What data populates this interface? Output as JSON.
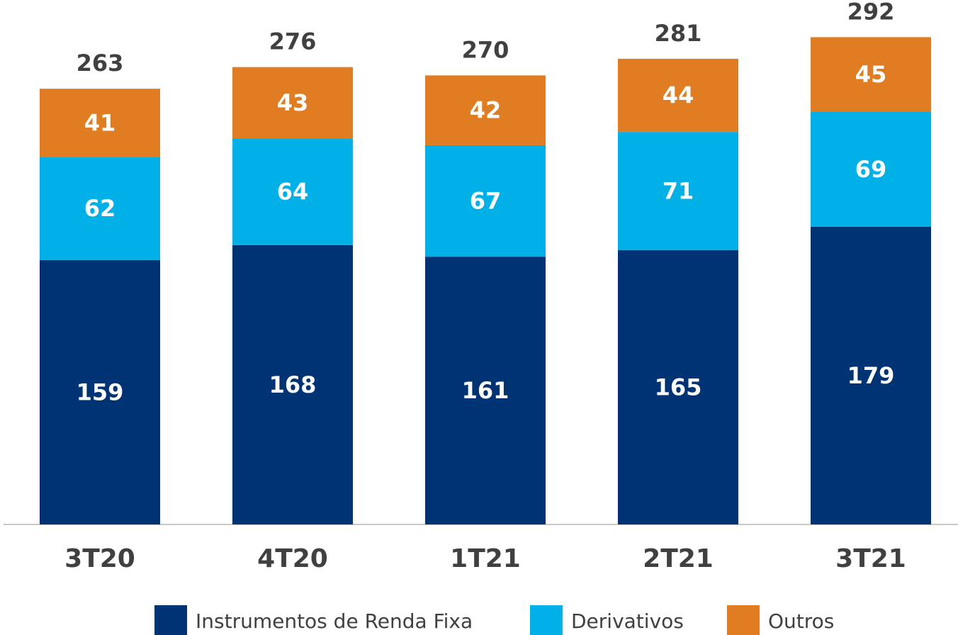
{
  "chart_data": {
    "type": "stacked_bar",
    "categories": [
      "3T20",
      "4T20",
      "1T21",
      "2T21",
      "3T21"
    ],
    "series": [
      {
        "name": "Instrumentos de Renda Fixa",
        "color": "#003373",
        "values": [
          159,
          168,
          161,
          165,
          179
        ]
      },
      {
        "name": "Derivativos",
        "color": "#00b0e6",
        "values": [
          62,
          64,
          67,
          71,
          69
        ]
      },
      {
        "name": "Outros",
        "color": "#e07c22",
        "values": [
          41,
          43,
          42,
          44,
          45
        ]
      }
    ],
    "totals": [
      263,
      276,
      270,
      281,
      292
    ],
    "ylim": [
      0,
      300
    ],
    "legend": "bottom"
  }
}
